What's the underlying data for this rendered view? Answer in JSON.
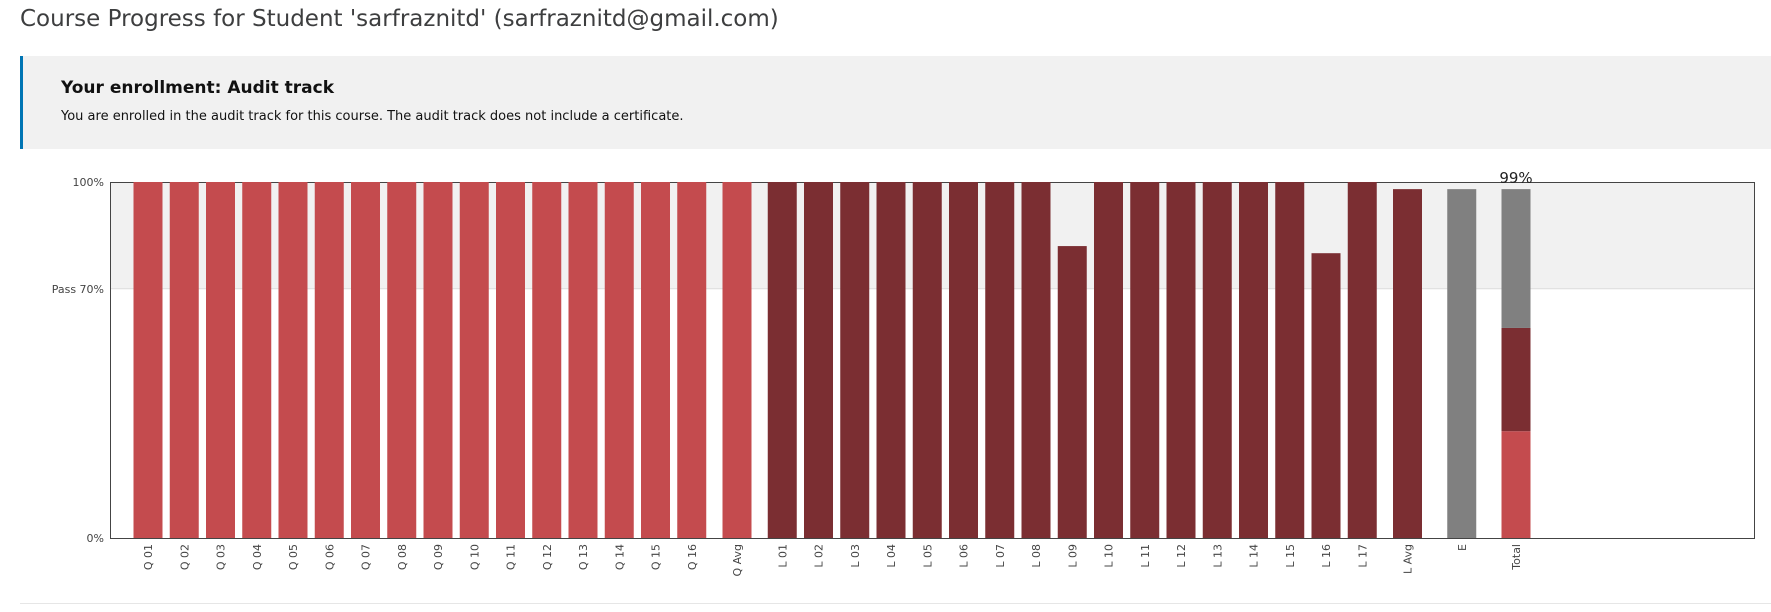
{
  "page": {
    "title": "Course Progress for Student 'sarfraznitd' (sarfraznitd@gmail.com)"
  },
  "enrollment": {
    "title": "Your enrollment: Audit track",
    "message": "You are enrolled in the audit track for this course. The audit track does not include a certificate."
  },
  "colors": {
    "quiz": "#c44b4e",
    "lab": "#7b2e32",
    "exam": "#808080",
    "accent": "#0075b4",
    "pass_band": "#f1f1f1"
  },
  "chart_data": {
    "type": "bar",
    "y_ticks": [
      {
        "value": 100,
        "label": "100%"
      },
      {
        "value": 70,
        "label": "Pass 70%"
      },
      {
        "value": 0,
        "label": "0%"
      }
    ],
    "ylim": [
      0,
      100
    ],
    "pass_threshold": 70,
    "total_label": "99%",
    "bars": [
      {
        "label": "Q 01",
        "value": 100,
        "group": "quiz"
      },
      {
        "label": "Q 02",
        "value": 100,
        "group": "quiz"
      },
      {
        "label": "Q 03",
        "value": 100,
        "group": "quiz"
      },
      {
        "label": "Q 04",
        "value": 100,
        "group": "quiz"
      },
      {
        "label": "Q 05",
        "value": 100,
        "group": "quiz"
      },
      {
        "label": "Q 06",
        "value": 100,
        "group": "quiz"
      },
      {
        "label": "Q 07",
        "value": 100,
        "group": "quiz"
      },
      {
        "label": "Q 08",
        "value": 100,
        "group": "quiz"
      },
      {
        "label": "Q 09",
        "value": 100,
        "group": "quiz"
      },
      {
        "label": "Q 10",
        "value": 100,
        "group": "quiz"
      },
      {
        "label": "Q 11",
        "value": 100,
        "group": "quiz"
      },
      {
        "label": "Q 12",
        "value": 100,
        "group": "quiz"
      },
      {
        "label": "Q 13",
        "value": 100,
        "group": "quiz"
      },
      {
        "label": "Q 14",
        "value": 100,
        "group": "quiz"
      },
      {
        "label": "Q 15",
        "value": 100,
        "group": "quiz"
      },
      {
        "label": "Q 16",
        "value": 100,
        "group": "quiz"
      },
      {
        "label": "Q Avg",
        "value": 100,
        "group": "quiz"
      },
      {
        "label": "L 01",
        "value": 100,
        "group": "lab"
      },
      {
        "label": "L 02",
        "value": 100,
        "group": "lab"
      },
      {
        "label": "L 03",
        "value": 100,
        "group": "lab"
      },
      {
        "label": "L 04",
        "value": 100,
        "group": "lab"
      },
      {
        "label": "L 05",
        "value": 100,
        "group": "lab"
      },
      {
        "label": "L 06",
        "value": 100,
        "group": "lab"
      },
      {
        "label": "L 07",
        "value": 100,
        "group": "lab"
      },
      {
        "label": "L 08",
        "value": 100,
        "group": "lab"
      },
      {
        "label": "L 09",
        "value": 82,
        "group": "lab"
      },
      {
        "label": "L 10",
        "value": 100,
        "group": "lab"
      },
      {
        "label": "L 11",
        "value": 100,
        "group": "lab"
      },
      {
        "label": "L 12",
        "value": 100,
        "group": "lab"
      },
      {
        "label": "L 13",
        "value": 100,
        "group": "lab"
      },
      {
        "label": "L 14",
        "value": 100,
        "group": "lab"
      },
      {
        "label": "L 15",
        "value": 100,
        "group": "lab"
      },
      {
        "label": "L 16",
        "value": 80,
        "group": "lab"
      },
      {
        "label": "L 17",
        "value": 100,
        "group": "lab"
      },
      {
        "label": "L Avg",
        "value": 98,
        "group": "lab"
      },
      {
        "label": "E",
        "value": 98,
        "group": "exam"
      },
      {
        "label": "Total",
        "group": "total",
        "segments": [
          {
            "group": "quiz",
            "value": 30
          },
          {
            "group": "lab",
            "value": 29
          },
          {
            "group": "exam",
            "value": 39
          }
        ]
      }
    ]
  }
}
